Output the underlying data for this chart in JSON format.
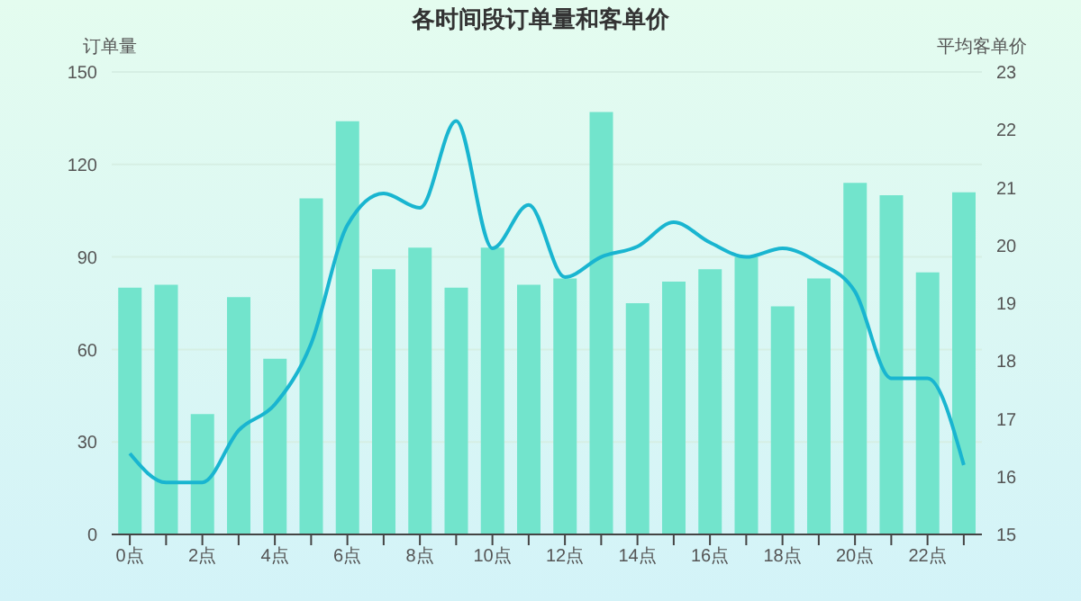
{
  "chart_data": {
    "type": "bar",
    "title": "各时间段订单量和客单价",
    "ylabel": "订单量",
    "y2label": "平均客单价",
    "categories": [
      "0点",
      null,
      "2点",
      null,
      "4点",
      null,
      "6点",
      null,
      "8点",
      null,
      "10点",
      null,
      "12点",
      null,
      "14点",
      null,
      "16点",
      null,
      "18点",
      null,
      "20点",
      null,
      "22点",
      null
    ],
    "series": [
      {
        "color": "#72e4cc",
        "values": [
          80,
          81,
          39,
          77,
          57,
          109,
          134,
          86,
          93,
          80,
          93,
          81,
          83,
          137,
          75,
          82,
          86,
          90,
          74,
          83,
          114,
          110,
          85,
          111
        ]
      },
      {
        "type": "line",
        "axis": "y2",
        "color": "#19b5d0",
        "values": [
          16.4,
          15.9,
          15.9,
          16.8,
          17.25,
          18.3,
          20.35,
          20.9,
          20.65,
          22.15,
          19.95,
          20.7,
          19.45,
          19.8,
          19.98,
          20.4,
          20.05,
          19.8,
          19.95,
          19.7,
          19.2,
          17.7,
          17.7,
          16.2
        ]
      }
    ],
    "ylim": [
      0,
      150
    ],
    "yticks": [
      0,
      30,
      60,
      90,
      120,
      150
    ],
    "y2lim": [
      15,
      23
    ],
    "y2ticks": [
      15,
      16,
      17,
      18,
      19,
      20,
      21,
      22,
      23
    ],
    "grid": "y",
    "legend": false,
    "marker": "none",
    "line_style": "solid"
  }
}
